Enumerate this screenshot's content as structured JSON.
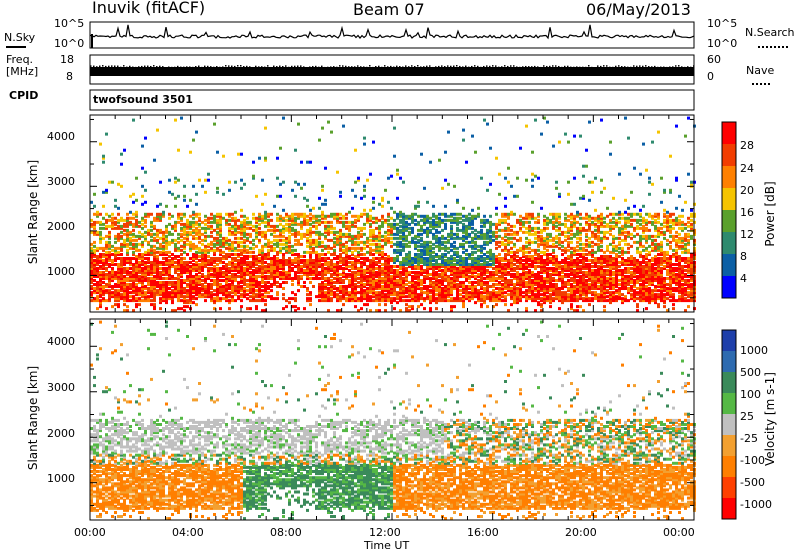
{
  "header": {
    "station": "Inuvik (fitACF)",
    "beam": "Beam 07",
    "date": "06/May/2013"
  },
  "panels": {
    "nsky": {
      "left_label": "N.Sky",
      "left_ticks": [
        "10^5",
        "10^0"
      ],
      "right_ticks": [
        "10^5",
        "10^0"
      ],
      "right_label": "N.Search"
    },
    "freq": {
      "left_label_line1": "Freq.",
      "left_label_line2": "[MHz]",
      "left_ticks": [
        "18",
        "8"
      ],
      "right_ticks": [
        "60",
        "0"
      ],
      "right_label": "Nave"
    },
    "cpid": {
      "left_label": "CPID",
      "text": "twofsound 3501"
    }
  },
  "chart_data": [
    {
      "type": "heatmap",
      "name": "power",
      "ylabel": "Slant Range [km]",
      "yticks": [
        "1000",
        "2000",
        "3000",
        "4000"
      ],
      "ylim": [
        180,
        4600
      ],
      "xlim": [
        0,
        24
      ],
      "colorbar_label": "Power [dB]",
      "colorbar_ticks": [
        "28",
        "24",
        "20",
        "16",
        "12",
        "8",
        "4"
      ],
      "colorbar_colors": [
        "#ff0000",
        "#f23d00",
        "#ff8000",
        "#f5c400",
        "#5aa02c",
        "#2e8a6e",
        "#0b5fa5",
        "#0000ff"
      ]
    },
    {
      "type": "heatmap",
      "name": "velocity",
      "ylabel": "Slant Range [km]",
      "yticks": [
        "1000",
        "2000",
        "3000",
        "4000"
      ],
      "ylim": [
        180,
        4600
      ],
      "xlim": [
        0,
        24
      ],
      "xlabel": "Time UT",
      "xticks": [
        "00:00",
        "04:00",
        "08:00",
        "12:00",
        "16:00",
        "20:00",
        "00:00"
      ],
      "colorbar_label": "Velocity [m s-1]",
      "colorbar_ticks": [
        "1000",
        "500",
        "100",
        "25",
        "-25",
        "-100",
        "-500",
        "-1000"
      ],
      "colorbar_colors": [
        "#1e3faa",
        "#2e6bb0",
        "#3a8a5a",
        "#55b845",
        "#c0c0c0",
        "#f3a030",
        "#ff7f00",
        "#ff4000",
        "#ff0000"
      ]
    }
  ]
}
